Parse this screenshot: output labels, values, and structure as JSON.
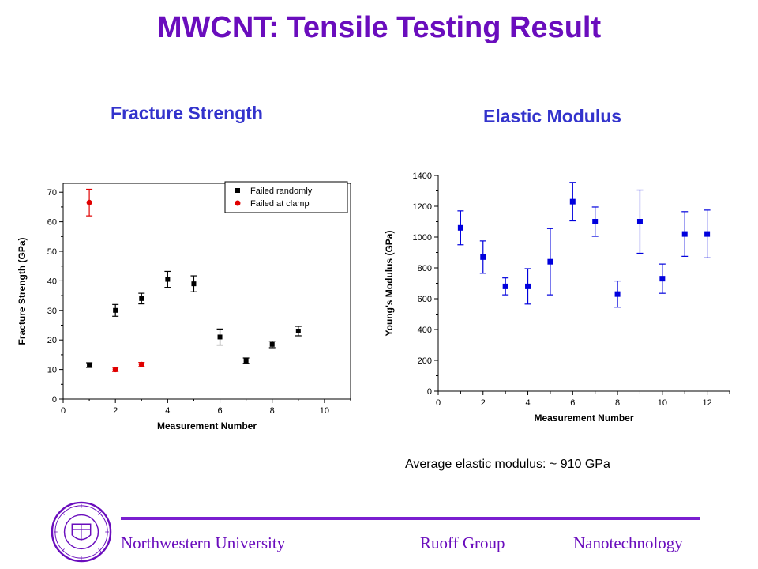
{
  "title": "MWCNT: Tensile Testing Result",
  "left_heading": "Fracture Strength",
  "right_heading": "Elastic Modulus",
  "note": "Average elastic modulus: ~ 910 GPa",
  "footer": {
    "university": "Northwestern University",
    "group": "Ruoff Group",
    "field": "Nanotechnology",
    "seal_text": "NORTHWESTERN UNIVERSITY 1851"
  },
  "colors": {
    "title": "#6a0dbd",
    "heading": "#3333cc",
    "black_series": "#000000",
    "red_series": "#e00000",
    "blue_series": "#0000dd"
  },
  "chart_data": [
    {
      "type": "scatter",
      "xlabel": "Measurement Number",
      "ylabel": "Fracture Strength (GPa)",
      "xlim": [
        0,
        11
      ],
      "ylim": [
        0,
        73
      ],
      "xticks": [
        0,
        2,
        4,
        6,
        8,
        10
      ],
      "yticks": [
        0,
        10,
        20,
        30,
        40,
        50,
        60,
        70
      ],
      "legend_position": "top-right",
      "error_bars": true,
      "series": [
        {
          "name": "Failed randomly",
          "marker": "square",
          "color": "#000000",
          "x": [
            1,
            2,
            3,
            4,
            5,
            6,
            7,
            8,
            9
          ],
          "y": [
            11.5,
            30,
            34,
            40.5,
            39,
            21,
            13,
            18.5,
            23
          ],
          "err": [
            0.8,
            2,
            1.8,
            2.7,
            2.7,
            2.7,
            0.9,
            1.1,
            1.6
          ]
        },
        {
          "name": "Failed at clamp",
          "marker": "circle",
          "color": "#e00000",
          "x": [
            1,
            2,
            3
          ],
          "y": [
            66.5,
            10,
            11.7
          ],
          "err": [
            4.5,
            0.7,
            0.7
          ]
        }
      ]
    },
    {
      "type": "scatter",
      "xlabel": "Measurement Number",
      "ylabel": "Young's Modulus (GPa)",
      "xlim": [
        0,
        13
      ],
      "ylim": [
        0,
        1400
      ],
      "xticks": [
        0,
        2,
        4,
        6,
        8,
        10,
        12
      ],
      "yticks": [
        0,
        200,
        400,
        600,
        800,
        1000,
        1200,
        1400
      ],
      "error_bars": true,
      "series": [
        {
          "marker": "square",
          "color": "#0000dd",
          "x": [
            1,
            2,
            3,
            4,
            5,
            6,
            7,
            8,
            9,
            10,
            11,
            12
          ],
          "y": [
            1060,
            870,
            680,
            680,
            840,
            1230,
            1100,
            630,
            1100,
            730,
            1020,
            1020
          ],
          "err": [
            110,
            105,
            55,
            115,
            215,
            125,
            95,
            85,
            205,
            95,
            145,
            155
          ]
        }
      ]
    }
  ]
}
